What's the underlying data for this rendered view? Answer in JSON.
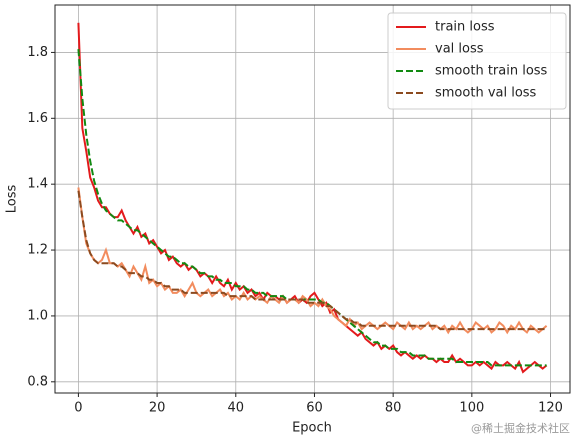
{
  "chart_data": {
    "type": "line",
    "xlabel": "Epoch",
    "ylabel": "Loss",
    "x": [
      0,
      1,
      2,
      3,
      4,
      5,
      6,
      7,
      8,
      9,
      10,
      11,
      12,
      13,
      14,
      15,
      16,
      17,
      18,
      19,
      20,
      21,
      22,
      23,
      24,
      25,
      26,
      27,
      28,
      29,
      30,
      31,
      32,
      33,
      34,
      35,
      36,
      37,
      38,
      39,
      40,
      41,
      42,
      43,
      44,
      45,
      46,
      47,
      48,
      49,
      50,
      51,
      52,
      53,
      54,
      55,
      56,
      57,
      58,
      59,
      60,
      61,
      62,
      63,
      64,
      65,
      66,
      67,
      68,
      69,
      70,
      71,
      72,
      73,
      74,
      75,
      76,
      77,
      78,
      79,
      80,
      81,
      82,
      83,
      84,
      85,
      86,
      87,
      88,
      89,
      90,
      91,
      92,
      93,
      94,
      95,
      96,
      97,
      98,
      99,
      100,
      101,
      102,
      103,
      104,
      105,
      106,
      107,
      108,
      109,
      110,
      111,
      112,
      113,
      114,
      115,
      116,
      117,
      118,
      119
    ],
    "series": [
      {
        "name": "train loss",
        "color": "#e31a1c",
        "linestyle": "solid",
        "values": [
          1.89,
          1.57,
          1.5,
          1.42,
          1.39,
          1.35,
          1.33,
          1.33,
          1.31,
          1.3,
          1.3,
          1.32,
          1.29,
          1.27,
          1.25,
          1.27,
          1.24,
          1.25,
          1.22,
          1.23,
          1.21,
          1.19,
          1.2,
          1.17,
          1.18,
          1.16,
          1.15,
          1.16,
          1.14,
          1.15,
          1.14,
          1.12,
          1.13,
          1.12,
          1.1,
          1.12,
          1.1,
          1.09,
          1.11,
          1.08,
          1.1,
          1.08,
          1.09,
          1.07,
          1.08,
          1.06,
          1.07,
          1.05,
          1.07,
          1.06,
          1.06,
          1.05,
          1.06,
          1.04,
          1.05,
          1.06,
          1.04,
          1.05,
          1.04,
          1.06,
          1.07,
          1.05,
          1.03,
          1.04,
          1.01,
          1.02,
          0.99,
          0.98,
          0.97,
          0.96,
          0.95,
          0.94,
          0.95,
          0.93,
          0.92,
          0.91,
          0.92,
          0.9,
          0.91,
          0.9,
          0.91,
          0.89,
          0.88,
          0.89,
          0.88,
          0.87,
          0.88,
          0.87,
          0.88,
          0.87,
          0.87,
          0.86,
          0.87,
          0.86,
          0.86,
          0.88,
          0.86,
          0.87,
          0.86,
          0.85,
          0.85,
          0.86,
          0.85,
          0.86,
          0.85,
          0.84,
          0.86,
          0.85,
          0.85,
          0.86,
          0.85,
          0.84,
          0.86,
          0.83,
          0.84,
          0.85,
          0.86,
          0.85,
          0.84,
          0.85
        ]
      },
      {
        "name": "val loss",
        "color": "#f28c5e",
        "linestyle": "solid",
        "values": [
          1.39,
          1.3,
          1.22,
          1.19,
          1.17,
          1.16,
          1.17,
          1.2,
          1.16,
          1.16,
          1.15,
          1.16,
          1.14,
          1.12,
          1.15,
          1.13,
          1.11,
          1.15,
          1.1,
          1.11,
          1.09,
          1.1,
          1.08,
          1.09,
          1.07,
          1.07,
          1.08,
          1.06,
          1.08,
          1.1,
          1.07,
          1.06,
          1.07,
          1.08,
          1.06,
          1.07,
          1.08,
          1.06,
          1.07,
          1.05,
          1.06,
          1.05,
          1.07,
          1.05,
          1.06,
          1.05,
          1.06,
          1.05,
          1.04,
          1.06,
          1.05,
          1.04,
          1.06,
          1.04,
          1.05,
          1.05,
          1.04,
          1.06,
          1.05,
          1.03,
          1.04,
          1.03,
          1.05,
          1.03,
          1.02,
          1.0,
          0.99,
          0.98,
          0.97,
          0.99,
          0.97,
          0.98,
          0.96,
          0.97,
          0.98,
          0.97,
          0.96,
          0.97,
          0.98,
          0.97,
          0.96,
          0.98,
          0.97,
          0.96,
          0.98,
          0.96,
          0.97,
          0.96,
          0.97,
          0.98,
          0.96,
          0.97,
          0.96,
          0.97,
          0.95,
          0.97,
          0.96,
          0.98,
          0.96,
          0.95,
          0.96,
          0.98,
          0.97,
          0.96,
          0.97,
          0.95,
          0.96,
          0.98,
          0.97,
          0.95,
          0.97,
          0.96,
          0.98,
          0.96,
          0.95,
          0.97,
          0.96,
          0.95,
          0.96,
          0.97
        ]
      },
      {
        "name": "smooth train loss",
        "color": "#128a12",
        "linestyle": "dashed",
        "values": [
          1.81,
          1.66,
          1.55,
          1.47,
          1.41,
          1.37,
          1.34,
          1.32,
          1.31,
          1.3,
          1.29,
          1.29,
          1.28,
          1.27,
          1.26,
          1.26,
          1.25,
          1.24,
          1.23,
          1.22,
          1.21,
          1.2,
          1.19,
          1.18,
          1.18,
          1.17,
          1.16,
          1.16,
          1.15,
          1.15,
          1.14,
          1.13,
          1.13,
          1.12,
          1.12,
          1.11,
          1.11,
          1.1,
          1.1,
          1.1,
          1.09,
          1.09,
          1.09,
          1.08,
          1.08,
          1.07,
          1.07,
          1.07,
          1.06,
          1.06,
          1.06,
          1.06,
          1.06,
          1.05,
          1.05,
          1.05,
          1.05,
          1.05,
          1.05,
          1.05,
          1.05,
          1.05,
          1.04,
          1.04,
          1.03,
          1.02,
          1.01,
          1.0,
          0.99,
          0.98,
          0.97,
          0.96,
          0.95,
          0.94,
          0.93,
          0.92,
          0.92,
          0.91,
          0.91,
          0.9,
          0.9,
          0.9,
          0.89,
          0.89,
          0.89,
          0.88,
          0.88,
          0.88,
          0.88,
          0.87,
          0.87,
          0.87,
          0.87,
          0.87,
          0.87,
          0.87,
          0.86,
          0.86,
          0.86,
          0.86,
          0.86,
          0.86,
          0.86,
          0.86,
          0.86,
          0.85,
          0.85,
          0.85,
          0.85,
          0.85,
          0.85,
          0.85,
          0.85,
          0.85,
          0.85,
          0.85,
          0.85,
          0.85,
          0.85,
          0.85
        ]
      },
      {
        "name": "smooth val loss",
        "color": "#8c4a1f",
        "linestyle": "dashed",
        "values": [
          1.38,
          1.3,
          1.23,
          1.19,
          1.17,
          1.16,
          1.16,
          1.16,
          1.16,
          1.16,
          1.15,
          1.15,
          1.14,
          1.13,
          1.13,
          1.13,
          1.12,
          1.12,
          1.11,
          1.11,
          1.1,
          1.1,
          1.09,
          1.09,
          1.08,
          1.08,
          1.08,
          1.07,
          1.07,
          1.07,
          1.07,
          1.07,
          1.07,
          1.07,
          1.07,
          1.07,
          1.07,
          1.07,
          1.06,
          1.06,
          1.06,
          1.06,
          1.06,
          1.06,
          1.06,
          1.05,
          1.05,
          1.05,
          1.05,
          1.05,
          1.05,
          1.05,
          1.05,
          1.05,
          1.05,
          1.05,
          1.05,
          1.05,
          1.04,
          1.04,
          1.04,
          1.04,
          1.04,
          1.03,
          1.03,
          1.02,
          1.01,
          1.0,
          0.99,
          0.99,
          0.98,
          0.98,
          0.97,
          0.97,
          0.97,
          0.97,
          0.97,
          0.97,
          0.97,
          0.97,
          0.97,
          0.97,
          0.97,
          0.97,
          0.97,
          0.97,
          0.97,
          0.97,
          0.97,
          0.97,
          0.97,
          0.97,
          0.96,
          0.96,
          0.96,
          0.96,
          0.96,
          0.96,
          0.96,
          0.96,
          0.96,
          0.96,
          0.96,
          0.96,
          0.96,
          0.96,
          0.96,
          0.96,
          0.96,
          0.96,
          0.96,
          0.96,
          0.96,
          0.96,
          0.96,
          0.96,
          0.96,
          0.96,
          0.96,
          0.96
        ]
      }
    ],
    "xlim": [
      -5.95,
      124.95
    ],
    "xticks": [
      0,
      20,
      40,
      60,
      80,
      100,
      120
    ],
    "ylim": [
      0.766,
      1.944
    ],
    "yticks": [
      0.8,
      {
        "value": 1,
        "label": "1.0"
      },
      1.2,
      1.4,
      1.6,
      1.8
    ],
    "grid": true,
    "legend": "upper right",
    "watermark": "@稀土掘金技术社区"
  }
}
